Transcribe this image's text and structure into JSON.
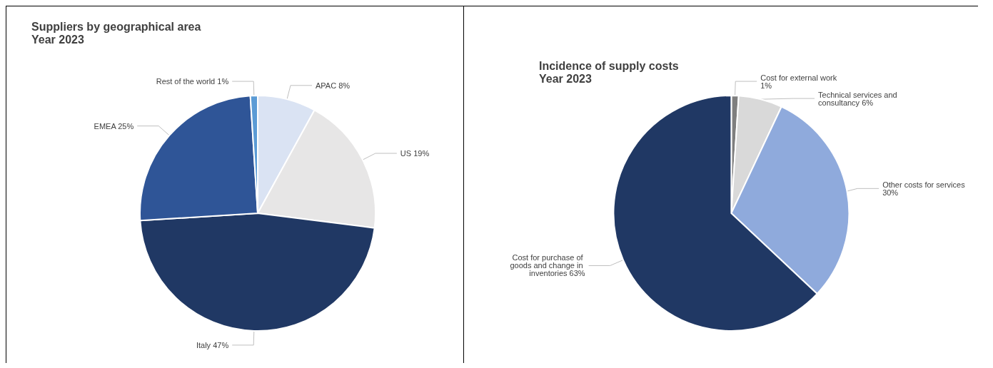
{
  "chart_data": [
    {
      "type": "pie",
      "title": "Suppliers by geographical area",
      "subtitle": "Year 2023",
      "categories": [
        "APAC",
        "US",
        "Italy",
        "EMEA",
        "Rest of the world"
      ],
      "values": [
        8,
        19,
        47,
        25,
        1
      ],
      "colors": [
        "#dae3f3",
        "#e7e6e6",
        "#203864",
        "#2f5597",
        "#5b9bd5"
      ],
      "legend": false,
      "value_labels": [
        "8%",
        "19%",
        "47%",
        "25%",
        "1%"
      ]
    },
    {
      "type": "pie",
      "title": "Incidence of supply costs",
      "subtitle": "Year 2023",
      "categories": [
        "Cost for external work",
        "Technical services and consultancy",
        "Other costs for services",
        "Cost for purchase of goods and change in inventories"
      ],
      "values": [
        1,
        6,
        30,
        63
      ],
      "colors": [
        "#7f7f7f",
        "#d9d9d9",
        "#8faadc",
        "#203864"
      ],
      "legend": false,
      "value_labels": [
        "1%",
        "6%",
        "30%",
        "63%"
      ]
    }
  ]
}
